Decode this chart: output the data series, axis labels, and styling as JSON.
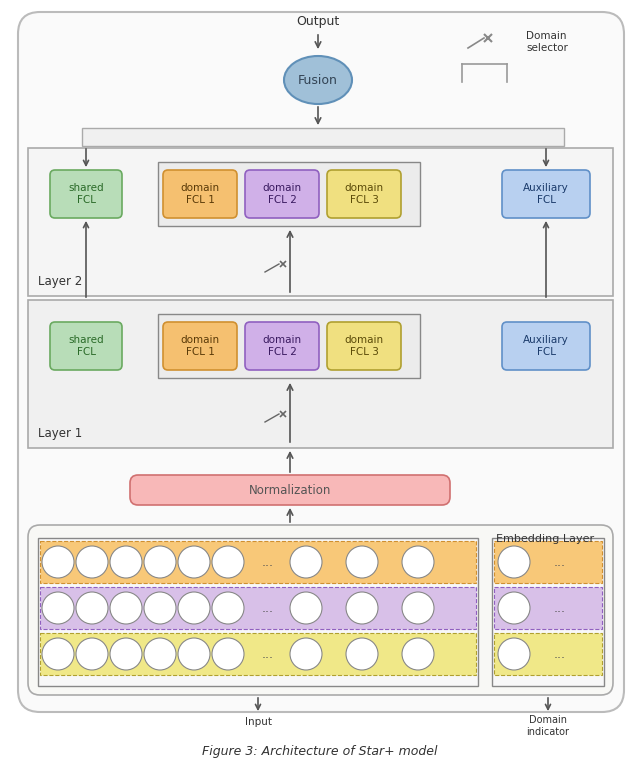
{
  "bg_color": "#ffffff",
  "outer_box_fc": "#ffffff",
  "outer_box_ec": "#aaaaaa",
  "layer_box_fc": "#f5f5f5",
  "layer_box_ec": "#999999",
  "shared_fcl_color": "#b8ddb8",
  "shared_fcl_edge": "#6aaa60",
  "domain1_color": "#f5c070",
  "domain1_edge": "#d09030",
  "domain2_color": "#d0b0e8",
  "domain2_edge": "#9060c0",
  "domain3_color": "#f0e080",
  "domain3_edge": "#b0a030",
  "aux_fcl_color": "#b8d0f0",
  "aux_fcl_edge": "#6090c8",
  "norm_color": "#f8b8b8",
  "norm_edge": "#d07070",
  "fusion_color": "#a0c0d8",
  "fusion_edge": "#6090b8",
  "connector_fc": "#f0f0f0",
  "connector_ec": "#aaaaaa",
  "embed_bg": "#f8f8f8",
  "embed_ec": "#999999",
  "inner_embed_fc": "#fafafa",
  "inner_embed_ec": "#777777",
  "orange_row": "#f8c878",
  "purple_row": "#d8c0e8",
  "yellow_row": "#f0e888",
  "orange_edge": "#d09030",
  "purple_edge": "#9060c0",
  "yellow_edge": "#b0a030",
  "text_color": "#333333",
  "arrow_color": "#555555",
  "domain_sel_color": "#777777",
  "output_text": "Output",
  "fusion_text": "Fusion",
  "layer1_text": "Layer 1",
  "layer2_text": "Layer 2",
  "shared_text": "shared\nFCL",
  "domain1_text": "domain\nFCL 1",
  "domain2_text": "domain\nFCL 2",
  "domain3_text": "domain\nFCL 3",
  "aux_text": "Auxiliary\nFCL",
  "norm_text": "Normalization",
  "embed_text": "Embedding Layer",
  "input_text": "Input",
  "domain_ind_text": "Domain\nindicator",
  "domain_sel_text": "Domain\nselector",
  "figure_caption": "Figure 3: Architecture of Star+ model"
}
